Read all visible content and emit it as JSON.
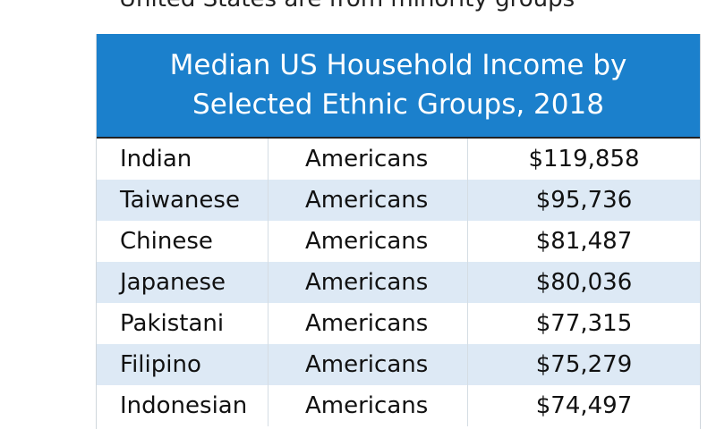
{
  "caption": "United States are from minority groups",
  "header": {
    "title": [
      "Median US Household Income by",
      "Selected Ethnic Groups, 2018"
    ]
  },
  "table": {
    "rows": [
      [
        "Indian",
        "Americans",
        "$119,858"
      ],
      [
        "Taiwanese",
        "Americans",
        "$95,736"
      ],
      [
        "Chinese",
        "Americans",
        "$81,487"
      ],
      [
        "Japanese",
        "Americans",
        "$80,036"
      ],
      [
        "Pakistani",
        "Americans",
        "$77,315"
      ],
      [
        "Filipino",
        "Americans",
        "$75,279"
      ],
      [
        "Indonesian",
        "Americans",
        "$74,497"
      ]
    ]
  }
}
